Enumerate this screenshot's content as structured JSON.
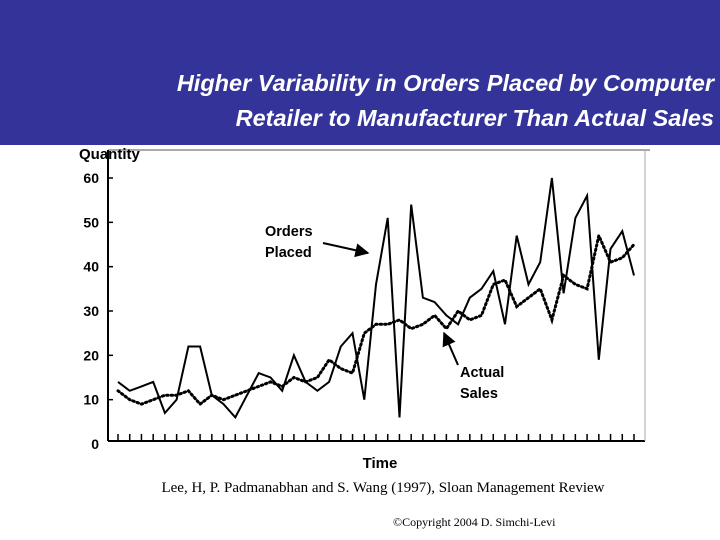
{
  "slide": {
    "title_line1": "Higher Variability in Orders Placed by Computer",
    "title_line2": "Retailer to Manufacturer Than Actual Sales",
    "citation": "Lee, H, P. Padmanabhan and S. Wang (1997), Sloan Management Review",
    "copyright": "©Copyright 2004 D. Simchi-Levi",
    "band_color": "#333399"
  },
  "chart_data": {
    "type": "line",
    "title": "",
    "xlabel": "Time",
    "ylabel": "Quantity",
    "ylim": [
      0,
      60
    ],
    "yticks": [
      "0",
      "10",
      "20",
      "30",
      "40",
      "50",
      "60"
    ],
    "x": [
      1,
      2,
      3,
      4,
      5,
      6,
      7,
      8,
      9,
      10,
      11,
      12,
      13,
      14,
      15,
      16,
      17,
      18,
      19,
      20,
      21,
      22,
      23,
      24,
      25,
      26,
      27,
      28,
      29,
      30,
      31,
      32,
      33,
      34,
      35,
      36,
      37,
      38,
      39,
      40,
      41,
      42,
      43,
      44,
      45
    ],
    "series": [
      {
        "name": "Orders Placed",
        "style": "solid",
        "values": [
          14,
          12,
          13,
          14,
          7,
          10,
          22,
          22,
          11,
          9,
          6,
          11,
          16,
          15,
          12,
          20,
          14,
          12,
          14,
          22,
          25,
          10,
          36,
          51,
          6,
          54,
          33,
          32,
          29,
          27,
          33,
          35,
          39,
          27,
          47,
          36,
          41,
          60,
          34,
          51,
          56,
          19,
          44,
          48,
          38
        ]
      },
      {
        "name": "Actual Sales",
        "style": "dotted",
        "values": [
          12,
          10,
          9,
          10,
          11,
          11,
          12,
          9,
          11,
          10,
          11,
          12,
          13,
          14,
          13,
          15,
          14,
          15,
          19,
          17,
          16,
          25,
          27,
          27,
          28,
          26,
          27,
          29,
          26,
          30,
          28,
          29,
          36,
          37,
          31,
          33,
          35,
          28,
          38,
          36,
          35,
          47,
          41,
          42,
          45
        ]
      }
    ],
    "annotations": {
      "orders_line1": "Orders",
      "orders_line2": "Placed",
      "sales_line1": "Actual",
      "sales_line2": "Sales"
    },
    "grid": false
  }
}
